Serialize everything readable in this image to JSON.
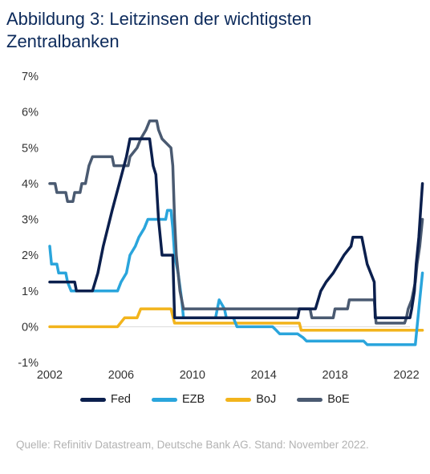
{
  "title": "Abbildung 3: Leitzinsen der wichtigsten Zentralbanken",
  "source": "Quelle: Refinitiv Datastream, Deutsche Bank AG. Stand: November 2022.",
  "chart_data": {
    "type": "line",
    "title": "Abbildung 3: Leitzinsen der wichtigsten Zentralbanken",
    "xlabel": "",
    "ylabel": "",
    "xlim": [
      2002,
      2022.2
    ],
    "ylim": [
      -1,
      7
    ],
    "x_ticks": [
      2002,
      2006,
      2010,
      2014,
      2018,
      2022
    ],
    "y_ticks": [
      {
        "value": -1,
        "label": "-1%"
      },
      {
        "value": 0,
        "label": "0%"
      },
      {
        "value": 1,
        "label": "1%"
      },
      {
        "value": 2,
        "label": "2%"
      },
      {
        "value": 3,
        "label": "3%"
      },
      {
        "value": 4,
        "label": "4%"
      },
      {
        "value": 5,
        "label": "5%"
      },
      {
        "value": 6,
        "label": "6%"
      },
      {
        "value": 7,
        "label": "7%"
      }
    ],
    "grid": false,
    "legend_position": "bottom",
    "series": [
      {
        "name": "Fed",
        "color": "#0b1f4d",
        "points": [
          [
            2002.0,
            1.25
          ],
          [
            2003.4,
            1.25
          ],
          [
            2003.5,
            1.0
          ],
          [
            2004.4,
            1.0
          ],
          [
            2004.7,
            1.5
          ],
          [
            2005.0,
            2.25
          ],
          [
            2005.5,
            3.25
          ],
          [
            2005.9,
            4.0
          ],
          [
            2006.3,
            4.75
          ],
          [
            2006.5,
            5.25
          ],
          [
            2007.6,
            5.25
          ],
          [
            2007.8,
            4.5
          ],
          [
            2007.95,
            4.25
          ],
          [
            2008.1,
            3.0
          ],
          [
            2008.3,
            2.0
          ],
          [
            2008.9,
            2.0
          ],
          [
            2009.0,
            0.25
          ],
          [
            2015.9,
            0.25
          ],
          [
            2016.0,
            0.5
          ],
          [
            2016.9,
            0.5
          ],
          [
            2017.2,
            1.0
          ],
          [
            2017.5,
            1.25
          ],
          [
            2017.9,
            1.5
          ],
          [
            2018.2,
            1.75
          ],
          [
            2018.5,
            2.0
          ],
          [
            2018.9,
            2.25
          ],
          [
            2019.0,
            2.5
          ],
          [
            2019.5,
            2.5
          ],
          [
            2019.6,
            2.25
          ],
          [
            2019.8,
            1.75
          ],
          [
            2020.2,
            1.25
          ],
          [
            2020.25,
            0.25
          ],
          [
            2022.2,
            0.25
          ],
          [
            2022.3,
            0.5
          ],
          [
            2022.45,
            1.0
          ],
          [
            2022.55,
            1.75
          ],
          [
            2022.7,
            2.5
          ],
          [
            2022.8,
            3.25
          ],
          [
            2022.9,
            4.0
          ]
        ]
      },
      {
        "name": "EZB",
        "color": "#2aa5dc",
        "points": [
          [
            2002.0,
            2.25
          ],
          [
            2002.1,
            1.75
          ],
          [
            2002.4,
            1.75
          ],
          [
            2002.5,
            1.5
          ],
          [
            2002.9,
            1.5
          ],
          [
            2003.0,
            1.25
          ],
          [
            2003.2,
            1.0
          ],
          [
            2005.8,
            1.0
          ],
          [
            2006.0,
            1.25
          ],
          [
            2006.3,
            1.5
          ],
          [
            2006.5,
            2.0
          ],
          [
            2006.8,
            2.25
          ],
          [
            2007.0,
            2.5
          ],
          [
            2007.3,
            2.75
          ],
          [
            2007.5,
            3.0
          ],
          [
            2008.5,
            3.0
          ],
          [
            2008.6,
            3.25
          ],
          [
            2008.8,
            3.25
          ],
          [
            2008.9,
            2.75
          ],
          [
            2009.0,
            2.0
          ],
          [
            2009.2,
            1.5
          ],
          [
            2009.4,
            0.75
          ],
          [
            2009.5,
            0.25
          ],
          [
            2011.3,
            0.25
          ],
          [
            2011.4,
            0.5
          ],
          [
            2011.5,
            0.75
          ],
          [
            2011.8,
            0.5
          ],
          [
            2011.9,
            0.25
          ],
          [
            2012.3,
            0.25
          ],
          [
            2012.5,
            0.0
          ],
          [
            2014.5,
            0.0
          ],
          [
            2014.7,
            -0.1
          ],
          [
            2014.9,
            -0.2
          ],
          [
            2015.9,
            -0.2
          ],
          [
            2016.2,
            -0.3
          ],
          [
            2016.4,
            -0.4
          ],
          [
            2019.6,
            -0.4
          ],
          [
            2019.8,
            -0.5
          ],
          [
            2022.5,
            -0.5
          ],
          [
            2022.6,
            0.0
          ],
          [
            2022.75,
            0.75
          ],
          [
            2022.9,
            1.5
          ]
        ]
      },
      {
        "name": "BoJ",
        "color": "#f2b41c",
        "points": [
          [
            2002.0,
            0.0
          ],
          [
            2005.8,
            0.0
          ],
          [
            2006.2,
            0.25
          ],
          [
            2006.9,
            0.25
          ],
          [
            2007.1,
            0.5
          ],
          [
            2008.8,
            0.5
          ],
          [
            2009.0,
            0.1
          ],
          [
            2016.0,
            0.1
          ],
          [
            2016.1,
            -0.1
          ],
          [
            2022.9,
            -0.1
          ]
        ]
      },
      {
        "name": "BoE",
        "color": "#4a5a71",
        "points": [
          [
            2002.0,
            4.0
          ],
          [
            2002.3,
            4.0
          ],
          [
            2002.4,
            3.75
          ],
          [
            2002.9,
            3.75
          ],
          [
            2003.0,
            3.5
          ],
          [
            2003.3,
            3.5
          ],
          [
            2003.4,
            3.75
          ],
          [
            2003.7,
            3.75
          ],
          [
            2003.8,
            4.0
          ],
          [
            2004.0,
            4.0
          ],
          [
            2004.2,
            4.5
          ],
          [
            2004.4,
            4.75
          ],
          [
            2005.5,
            4.75
          ],
          [
            2005.6,
            4.5
          ],
          [
            2006.4,
            4.5
          ],
          [
            2006.5,
            4.75
          ],
          [
            2006.9,
            5.0
          ],
          [
            2007.1,
            5.25
          ],
          [
            2007.4,
            5.5
          ],
          [
            2007.6,
            5.75
          ],
          [
            2008.0,
            5.75
          ],
          [
            2008.1,
            5.5
          ],
          [
            2008.3,
            5.25
          ],
          [
            2008.8,
            5.0
          ],
          [
            2008.9,
            4.5
          ],
          [
            2009.0,
            3.0
          ],
          [
            2009.1,
            2.0
          ],
          [
            2009.3,
            1.0
          ],
          [
            2009.5,
            0.5
          ],
          [
            2016.6,
            0.5
          ],
          [
            2016.7,
            0.25
          ],
          [
            2017.9,
            0.25
          ],
          [
            2018.0,
            0.5
          ],
          [
            2018.7,
            0.5
          ],
          [
            2018.8,
            0.75
          ],
          [
            2020.2,
            0.75
          ],
          [
            2020.3,
            0.1
          ],
          [
            2021.9,
            0.1
          ],
          [
            2022.0,
            0.25
          ],
          [
            2022.1,
            0.5
          ],
          [
            2022.3,
            0.75
          ],
          [
            2022.4,
            1.0
          ],
          [
            2022.5,
            1.25
          ],
          [
            2022.6,
            1.75
          ],
          [
            2022.75,
            2.25
          ],
          [
            2022.9,
            3.0
          ]
        ]
      }
    ]
  }
}
